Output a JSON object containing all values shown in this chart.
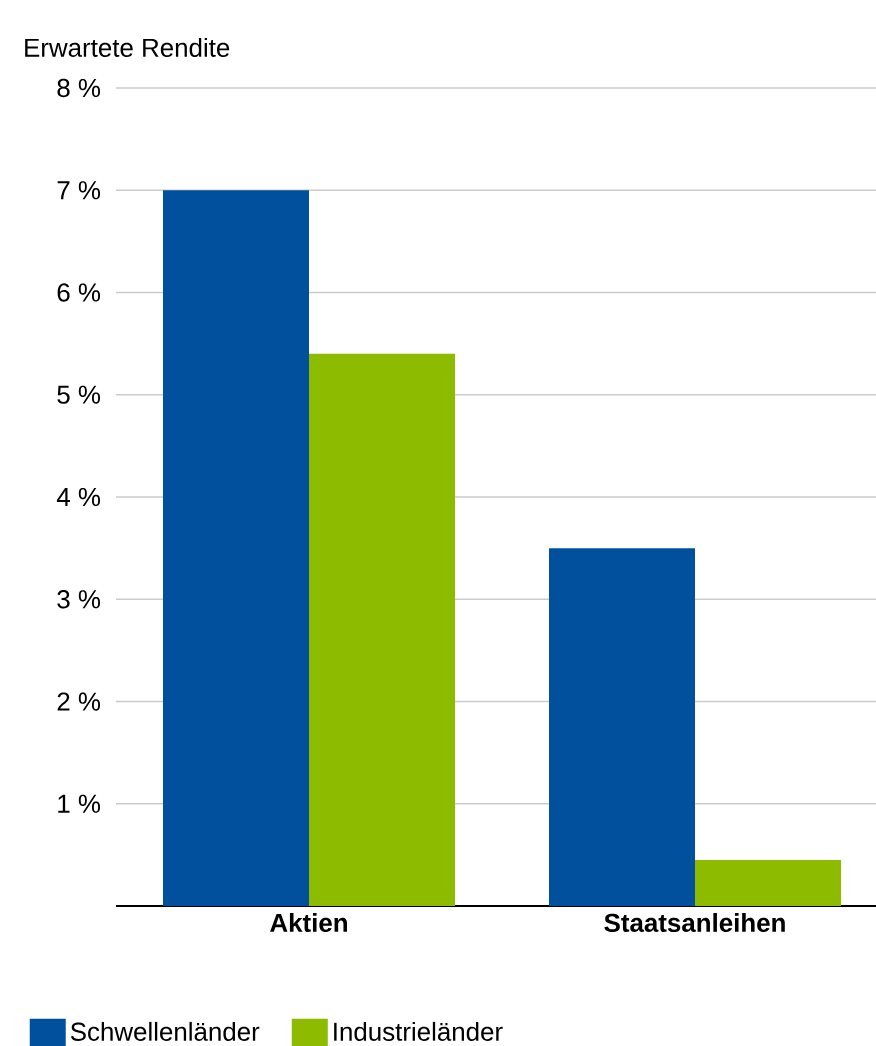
{
  "chart_data": {
    "type": "bar",
    "ylabel": "Erwartete Rendite",
    "categories": [
      "Aktien",
      "Staatsanleihen"
    ],
    "series": [
      {
        "name": "Schwellenländer",
        "color": "#00509e",
        "values": [
          7.0,
          3.5
        ]
      },
      {
        "name": "Industrieländer",
        "color": "#8cbb00",
        "values": [
          5.4,
          0.45
        ]
      }
    ],
    "ylim": [
      0,
      8
    ],
    "yticks": [
      {
        "value": 1,
        "label": "1 %"
      },
      {
        "value": 2,
        "label": "2 %"
      },
      {
        "value": 3,
        "label": "3 %"
      },
      {
        "value": 4,
        "label": "4 %"
      },
      {
        "value": 5,
        "label": "5 %"
      },
      {
        "value": 6,
        "label": "6 %"
      },
      {
        "value": 7,
        "label": "7 %"
      },
      {
        "value": 8,
        "label": "8 %"
      }
    ],
    "grid": "y",
    "legend": "bottom"
  }
}
